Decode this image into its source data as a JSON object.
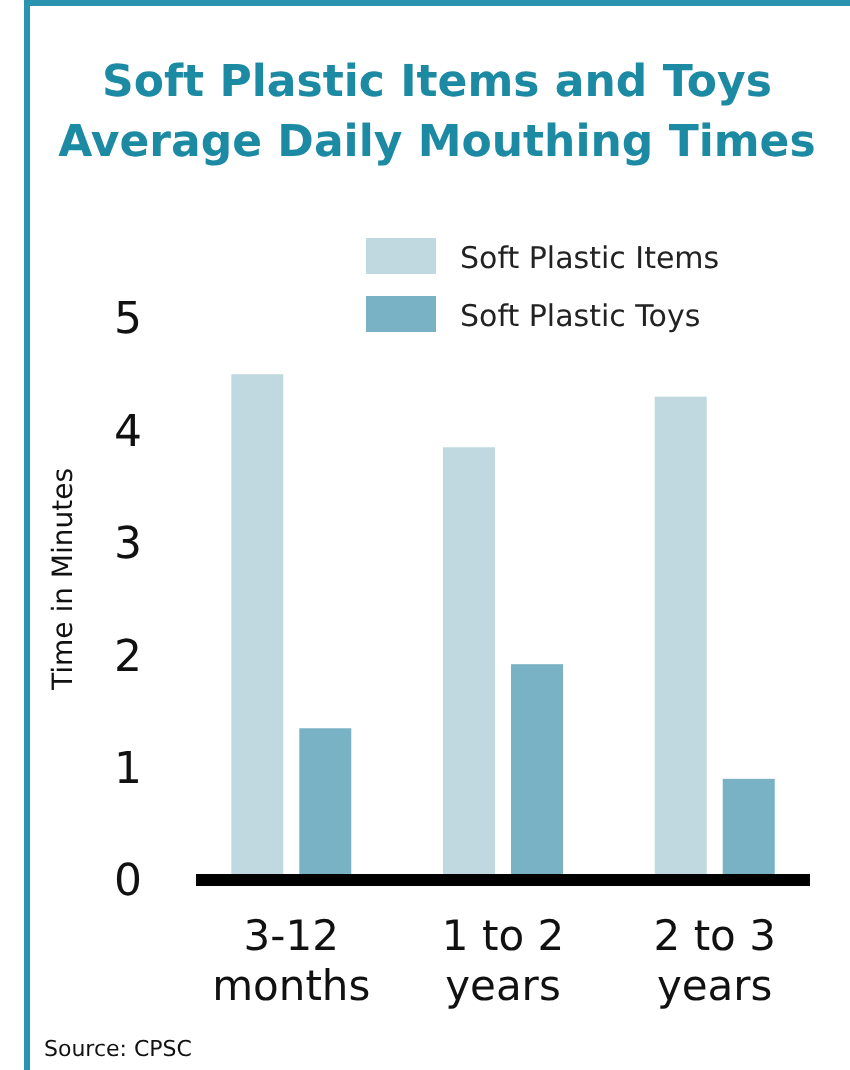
{
  "chart_data": {
    "type": "bar",
    "title": "Soft Plastic Items and Toys\nAverage Daily Mouthing Times",
    "ylabel": "Time in Minutes",
    "categories": [
      "3-12 months",
      "1 to 2 years",
      "2 to 3 years"
    ],
    "series": [
      {
        "name": "Soft Plastic Items",
        "color": "#c0d9e0",
        "values": [
          4.5,
          3.85,
          4.3
        ]
      },
      {
        "name": "Soft Plastic Toys",
        "color": "#78b2c4",
        "values": [
          1.35,
          1.92,
          0.9
        ]
      }
    ],
    "ylim": [
      0,
      5
    ],
    "yticks": [
      0,
      1,
      2,
      3,
      4,
      5
    ],
    "grid": false,
    "legend": "top right",
    "annotations": [
      "Source: CPSC"
    ]
  }
}
